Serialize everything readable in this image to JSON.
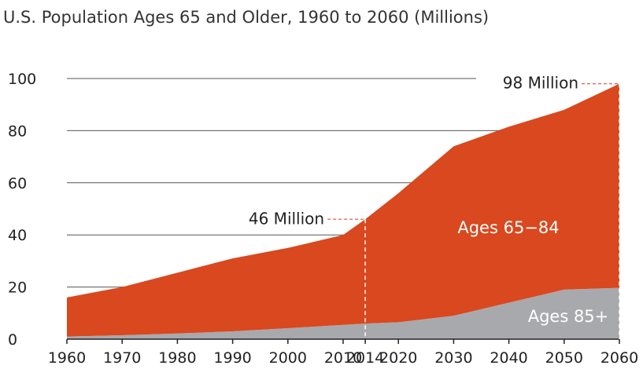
{
  "chart_data": {
    "type": "area",
    "title": "U.S. Population Ages 65 and Older, 1960 to 2060 (Millions)",
    "xlabel": "",
    "ylabel": "",
    "x": [
      1960,
      1970,
      1980,
      1990,
      2000,
      2010,
      2014,
      2020,
      2030,
      2040,
      2050,
      2060
    ],
    "x_ticks": [
      "1960",
      "1970",
      "1980",
      "1990",
      "2000",
      "2010",
      "2014",
      "2020",
      "2030",
      "2040",
      "2050",
      "2060"
    ],
    "y_ticks": [
      "0",
      "20",
      "40",
      "60",
      "80",
      "100"
    ],
    "ylim": [
      0,
      100
    ],
    "xlim": [
      1960,
      2060
    ],
    "stacked": true,
    "grid": "horizontal",
    "series": [
      {
        "name": "Ages 85+",
        "color": "#a8a9ad",
        "values": [
          1,
          1.5,
          2.2,
          3,
          4.2,
          5.5,
          6,
          6.5,
          9,
          14,
          19,
          19.7
        ]
      },
      {
        "name": "Ages 65−84",
        "color": "#d9481e",
        "values": [
          15,
          18.5,
          23.3,
          28,
          30.8,
          34.5,
          40,
          49.5,
          65,
          67.5,
          69,
          78.3
        ]
      }
    ],
    "totals": [
      16,
      20,
      25.5,
      31,
      35,
      40,
      46,
      56,
      74,
      81.5,
      88,
      98
    ],
    "annotations": [
      {
        "label": "46 Million",
        "x": 2014,
        "y": 46
      },
      {
        "label": "98 Million",
        "x": 2060,
        "y": 98
      }
    ]
  }
}
